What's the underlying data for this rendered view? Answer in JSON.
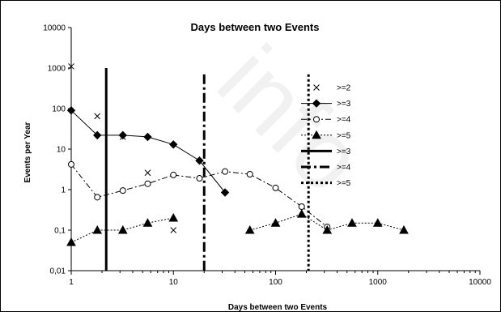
{
  "watermark": "info",
  "chart_data": {
    "type": "line",
    "title": "Days between two Events",
    "xlabel": "Days between two Events",
    "ylabel": "Events per Year",
    "xscale": "log",
    "yscale": "log",
    "xlim": [
      1,
      10000
    ],
    "ylim": [
      0.01,
      10000
    ],
    "x_tick_labels": [
      "1",
      "10",
      "100",
      "1000",
      "10000"
    ],
    "y_tick_labels": [
      "0,01",
      "0,1",
      "1",
      "10",
      "100",
      "1000",
      "10000"
    ],
    "grid": false,
    "legend_position": "right",
    "series": [
      {
        "name": ">=2",
        "marker": "x",
        "line": "none",
        "color": "#000000",
        "x": [
          1,
          1.8,
          3.2,
          5.6,
          10
        ],
        "y": [
          1100,
          65,
          20,
          2.6,
          0.1
        ]
      },
      {
        "name": ">=3",
        "marker": "filled-diamond",
        "line": "solid",
        "color": "#000000",
        "x": [
          1,
          1.8,
          3.2,
          5.6,
          10,
          18,
          32
        ],
        "y": [
          90,
          22,
          22,
          20,
          13,
          5.2,
          0.85
        ]
      },
      {
        "name": ">=4",
        "marker": "open-circle",
        "line": "dash-dot",
        "color": "#000000",
        "x": [
          1,
          1.8,
          3.2,
          5.6,
          10,
          18,
          32,
          56,
          100,
          180,
          320
        ],
        "y": [
          4.2,
          0.65,
          0.95,
          1.4,
          2.3,
          1.9,
          2.8,
          2.4,
          1.1,
          0.38,
          0.12
        ]
      },
      {
        "name": ">=5",
        "marker": "filled-triangle",
        "line": "dotted",
        "color": "#000000",
        "segments": [
          {
            "x": [
              1,
              1.8,
              3.2,
              5.6,
              10
            ],
            "y": [
              0.05,
              0.1,
              0.1,
              0.15,
              0.2
            ]
          },
          {
            "x": [
              56,
              100,
              180,
              320,
              560,
              1000,
              1800
            ],
            "y": [
              0.1,
              0.15,
              0.25,
              0.1,
              0.15,
              0.15,
              0.1
            ]
          }
        ]
      },
      {
        "name": ">=3",
        "type": "vline",
        "x": 2.2,
        "line": "solid",
        "y_range": [
          0.01,
          1000
        ]
      },
      {
        "name": ">=4",
        "type": "vline",
        "x": 20,
        "line": "dash-dot",
        "y_range": [
          0.01,
          700
        ]
      },
      {
        "name": ">=5",
        "type": "vline",
        "x": 210,
        "line": "dotted",
        "y_range": [
          0.01,
          700
        ]
      }
    ]
  }
}
